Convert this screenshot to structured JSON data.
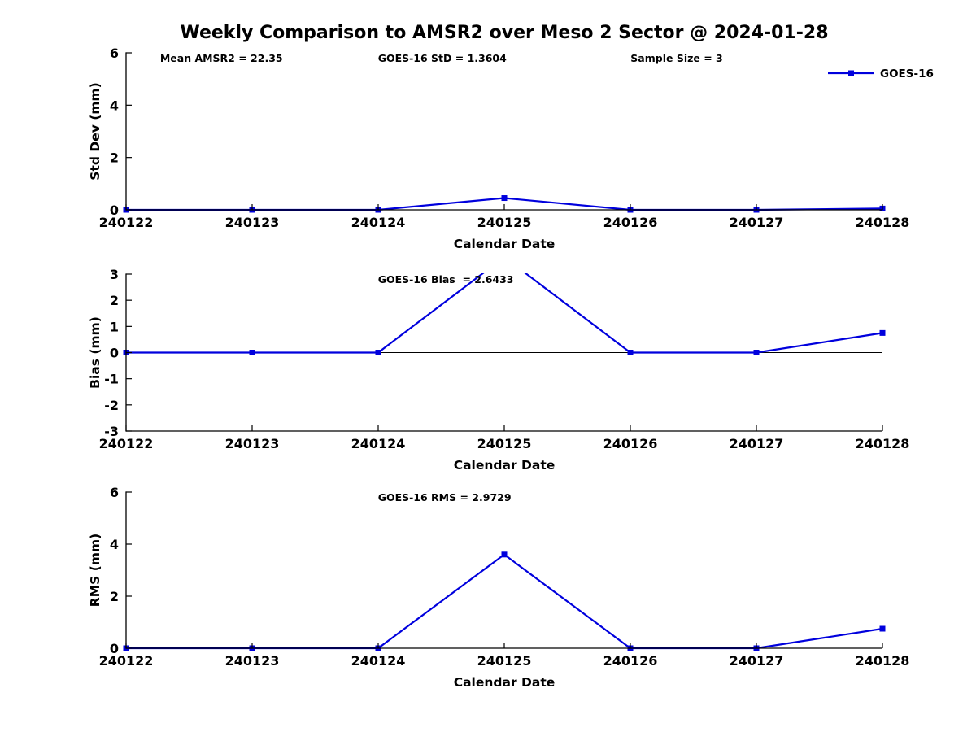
{
  "title": "Weekly Comparison to AMSR2 over Meso 2 Sector @ 2024-01-28",
  "colors": {
    "line": "#0000dd",
    "axis": "#000000",
    "text": "#000000",
    "background": "#ffffff"
  },
  "chart_data": [
    {
      "id": "std-dev-chart",
      "type": "line",
      "xlabel": "Calendar Date",
      "ylabel": "Std Dev (mm)",
      "categories": [
        "240122",
        "240123",
        "240124",
        "240125",
        "240126",
        "240127",
        "240128"
      ],
      "series": [
        {
          "name": "GOES-16",
          "values": [
            0,
            0,
            0,
            0.45,
            0,
            0,
            0.05
          ]
        }
      ],
      "ylim": [
        0,
        6
      ],
      "yticks": [
        0,
        2,
        4,
        6
      ],
      "grid": false,
      "legend": {
        "label": "GOES-16",
        "position": "top-right"
      },
      "annotations": [
        {
          "text": "Mean AMSR2 = 22.35",
          "xfrac": 0.045
        },
        {
          "text": "GOES-16 StD = 1.3604",
          "xfrac": 0.333
        },
        {
          "text": "Sample Size = 3",
          "xfrac": 0.667
        }
      ]
    },
    {
      "id": "bias-chart",
      "type": "line",
      "xlabel": "Calendar Date",
      "ylabel": "Bias (mm)",
      "categories": [
        "240122",
        "240123",
        "240124",
        "240125",
        "240126",
        "240127",
        "240128"
      ],
      "series": [
        {
          "name": "GOES-16",
          "values": [
            0,
            0,
            0,
            3.65,
            0,
            0,
            0.75
          ]
        }
      ],
      "ylim": [
        -3,
        3
      ],
      "yticks": [
        -3,
        -2,
        -1,
        0,
        1,
        2,
        3
      ],
      "grid": false,
      "zero_line": true,
      "annotations": [
        {
          "text": "GOES-16 Bias  = 2.6433",
          "xfrac": 0.333
        }
      ]
    },
    {
      "id": "rms-chart",
      "type": "line",
      "xlabel": "Calendar Date",
      "ylabel": "RMS (mm)",
      "categories": [
        "240122",
        "240123",
        "240124",
        "240125",
        "240126",
        "240127",
        "240128"
      ],
      "series": [
        {
          "name": "GOES-16",
          "values": [
            0,
            0,
            0,
            3.6,
            0,
            0,
            0.75
          ]
        }
      ],
      "ylim": [
        0,
        6
      ],
      "yticks": [
        0,
        2,
        4,
        6
      ],
      "grid": false,
      "annotations": [
        {
          "text": "GOES-16 RMS = 2.9729",
          "xfrac": 0.333
        }
      ]
    }
  ]
}
